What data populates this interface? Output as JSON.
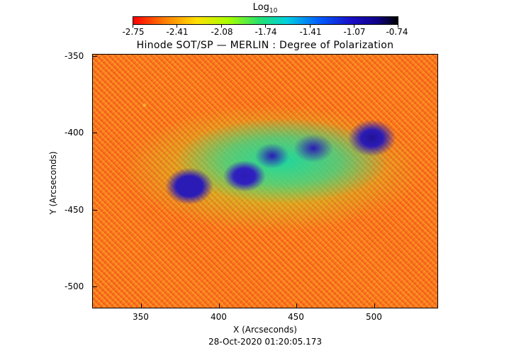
{
  "colorbar": {
    "title": "Log",
    "title_subscript": "10",
    "ticks": [
      "-2.75",
      "-2.41",
      "-2.08",
      "-1.74",
      "-1.41",
      "-1.07",
      "-0.74"
    ]
  },
  "title": "Hinode SOT/SP — MERLIN : Degree of Polarization",
  "x_axis": {
    "label": "X (Arcseconds)",
    "ticks": [
      "350",
      "400",
      "450",
      "500"
    ]
  },
  "y_axis": {
    "label": "Y (Arcseconds)",
    "ticks": [
      "-350",
      "-400",
      "-450",
      "-500"
    ]
  },
  "timestamp": "28-Oct-2020 01:20:05.173"
}
